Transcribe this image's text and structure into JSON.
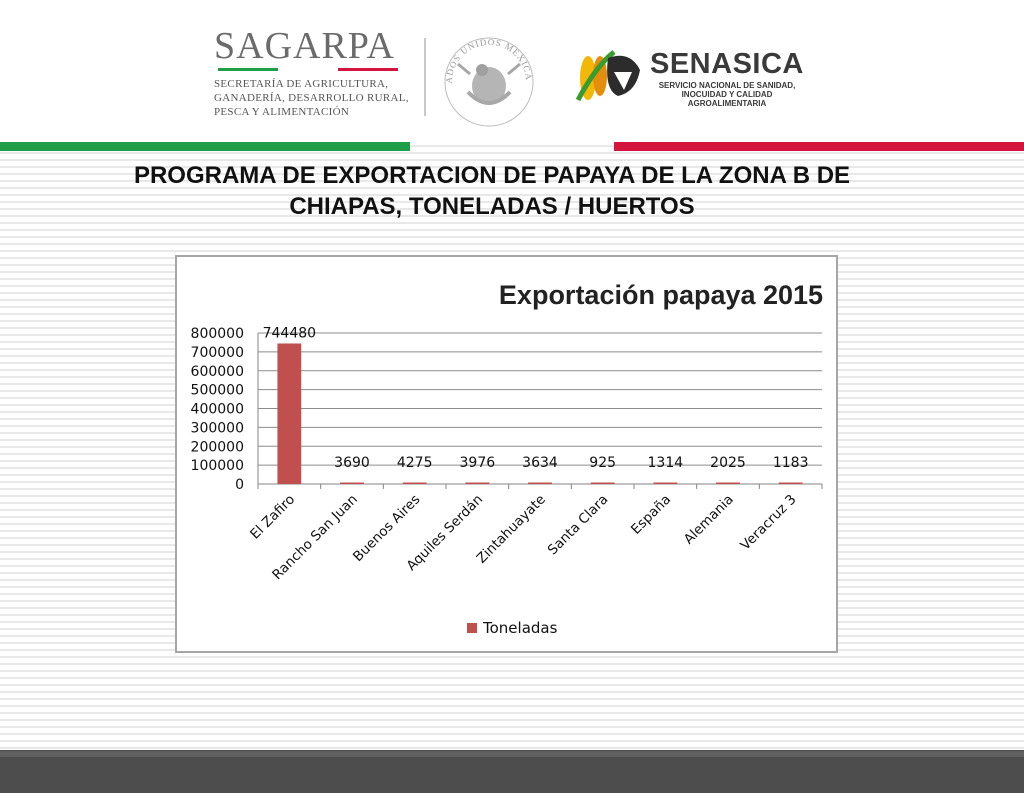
{
  "header": {
    "sagarpa": {
      "name": "SAGARPA",
      "lines": [
        "SECRETARÍA DE AGRICULTURA,",
        "GANADERÍA, DESARROLLO RURAL,",
        "PESCA Y ALIMENTACIÓN"
      ]
    },
    "seal_text": "ESTADOS UNIDOS MEXICANOS",
    "senasica": {
      "name": "SENASICA",
      "lines": [
        "SERVICIO NACIONAL DE SANIDAD,",
        "INOCUIDAD Y CALIDAD",
        "AGROALIMENTARIA"
      ]
    },
    "colors": {
      "green": "#1f9e4a",
      "red": "#d3153d"
    }
  },
  "title_lines": [
    "PROGRAMA DE EXPORTACION DE PAPAYA DE LA ZONA B DE",
    "CHIAPAS, TONELADAS / HUERTOS"
  ],
  "chart_data": {
    "type": "bar",
    "title": "Exportación papaya 2015",
    "categories": [
      "El Zafiro",
      "Rancho San Juan",
      "Buenos Aires",
      "Aquiles Serdán",
      "Zintahuayate",
      "Santa Clara",
      "España",
      "Alemania",
      "Veracruz 3"
    ],
    "series": [
      {
        "name": "Toneladas",
        "values": [
          744480,
          3690,
          4275,
          3976,
          3634,
          925,
          1314,
          2025,
          1183
        ],
        "color": "#c0504d"
      }
    ],
    "ylim": [
      0,
      800000
    ],
    "yticks": [
      0,
      100000,
      200000,
      300000,
      400000,
      500000,
      600000,
      700000,
      800000
    ],
    "grid": true,
    "legend_position": "bottom",
    "data_labels": true
  }
}
